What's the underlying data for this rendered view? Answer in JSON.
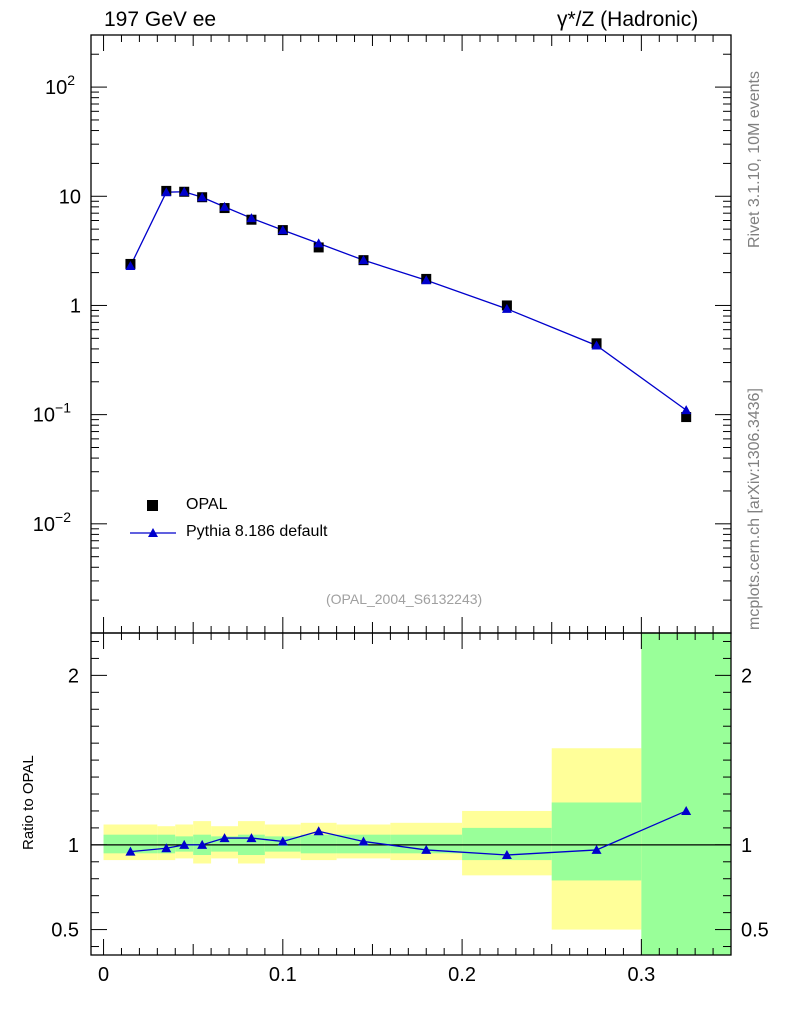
{
  "header": {
    "left_title": "197 GeV ee",
    "right_title": "γ*/Z (Hadronic)"
  },
  "side_labels": {
    "rivet": "Rivet 3.1.10,  10M events",
    "mcplots": "mcplots.cern.ch [arXiv:1306.3436]"
  },
  "analysis_id": "(OPAL_2004_S6132243)",
  "colors": {
    "data": "#000000",
    "mc": "#0000cc",
    "band_inner": "#99ff99",
    "band_outer": "#ffff99"
  },
  "chart_data": [
    {
      "type": "scatter",
      "panel": "main",
      "yscale": "log",
      "xlim": [
        -0.007,
        0.35
      ],
      "ylim": [
        0.001,
        300
      ],
      "xlabel": "",
      "ylabel": "",
      "y_tick_labels": [
        "10^-2",
        "10^-1",
        "1",
        "10",
        "10^2"
      ],
      "legend_position": "lower-left",
      "series": [
        {
          "name": "OPAL",
          "marker": "square",
          "x": [
            0.015,
            0.035,
            0.045,
            0.055,
            0.0675,
            0.0825,
            0.1,
            0.12,
            0.145,
            0.18,
            0.225,
            0.275,
            0.325
          ],
          "y": [
            2.4,
            11.2,
            11.0,
            9.8,
            7.8,
            6.1,
            4.9,
            3.4,
            2.6,
            1.75,
            1.0,
            0.45,
            0.095
          ]
        },
        {
          "name": "Pythia 8.186 default",
          "marker": "triangle",
          "x": [
            0.015,
            0.035,
            0.045,
            0.055,
            0.0675,
            0.0825,
            0.1,
            0.12,
            0.145,
            0.18,
            0.225,
            0.275,
            0.325
          ],
          "y": [
            2.3,
            10.9,
            11.0,
            9.8,
            8.0,
            6.3,
            4.9,
            3.7,
            2.6,
            1.7,
            0.93,
            0.43,
            0.11
          ]
        }
      ]
    },
    {
      "type": "line",
      "panel": "ratio",
      "xlim": [
        -0.007,
        0.35
      ],
      "ylim": [
        0.35,
        2.25
      ],
      "ylabel": "Ratio to OPAL",
      "x_tick_labels": [
        "0",
        "0.1",
        "0.2",
        "0.3"
      ],
      "y_tick_labels": [
        "0.5",
        "1",
        "2"
      ],
      "reference_line": 1,
      "bands": {
        "edges": [
          0.0,
          0.03,
          0.04,
          0.05,
          0.06,
          0.075,
          0.09,
          0.11,
          0.13,
          0.16,
          0.2,
          0.25,
          0.3,
          0.35
        ],
        "inner_lo": [
          0.95,
          0.95,
          0.96,
          0.94,
          0.96,
          0.94,
          0.96,
          0.95,
          0.95,
          0.95,
          0.91,
          0.79,
          0.35
        ],
        "inner_hi": [
          1.06,
          1.06,
          1.05,
          1.06,
          1.05,
          1.06,
          1.05,
          1.06,
          1.06,
          1.06,
          1.1,
          1.25,
          2.25
        ],
        "outer_lo": [
          0.91,
          0.91,
          0.92,
          0.89,
          0.92,
          0.89,
          0.92,
          0.91,
          0.92,
          0.91,
          0.82,
          0.5,
          0.35
        ],
        "outer_hi": [
          1.12,
          1.11,
          1.12,
          1.14,
          1.11,
          1.14,
          1.12,
          1.13,
          1.12,
          1.13,
          1.2,
          1.57,
          2.25
        ]
      },
      "series": [
        {
          "name": "Pythia 8.186 default / OPAL",
          "marker": "triangle",
          "x": [
            0.015,
            0.035,
            0.045,
            0.055,
            0.0675,
            0.0825,
            0.1,
            0.12,
            0.145,
            0.18,
            0.225,
            0.275,
            0.325
          ],
          "y": [
            0.96,
            0.98,
            1.0,
            1.0,
            1.04,
            1.04,
            1.02,
            1.08,
            1.02,
            0.97,
            0.94,
            0.97,
            1.2
          ]
        }
      ]
    }
  ]
}
